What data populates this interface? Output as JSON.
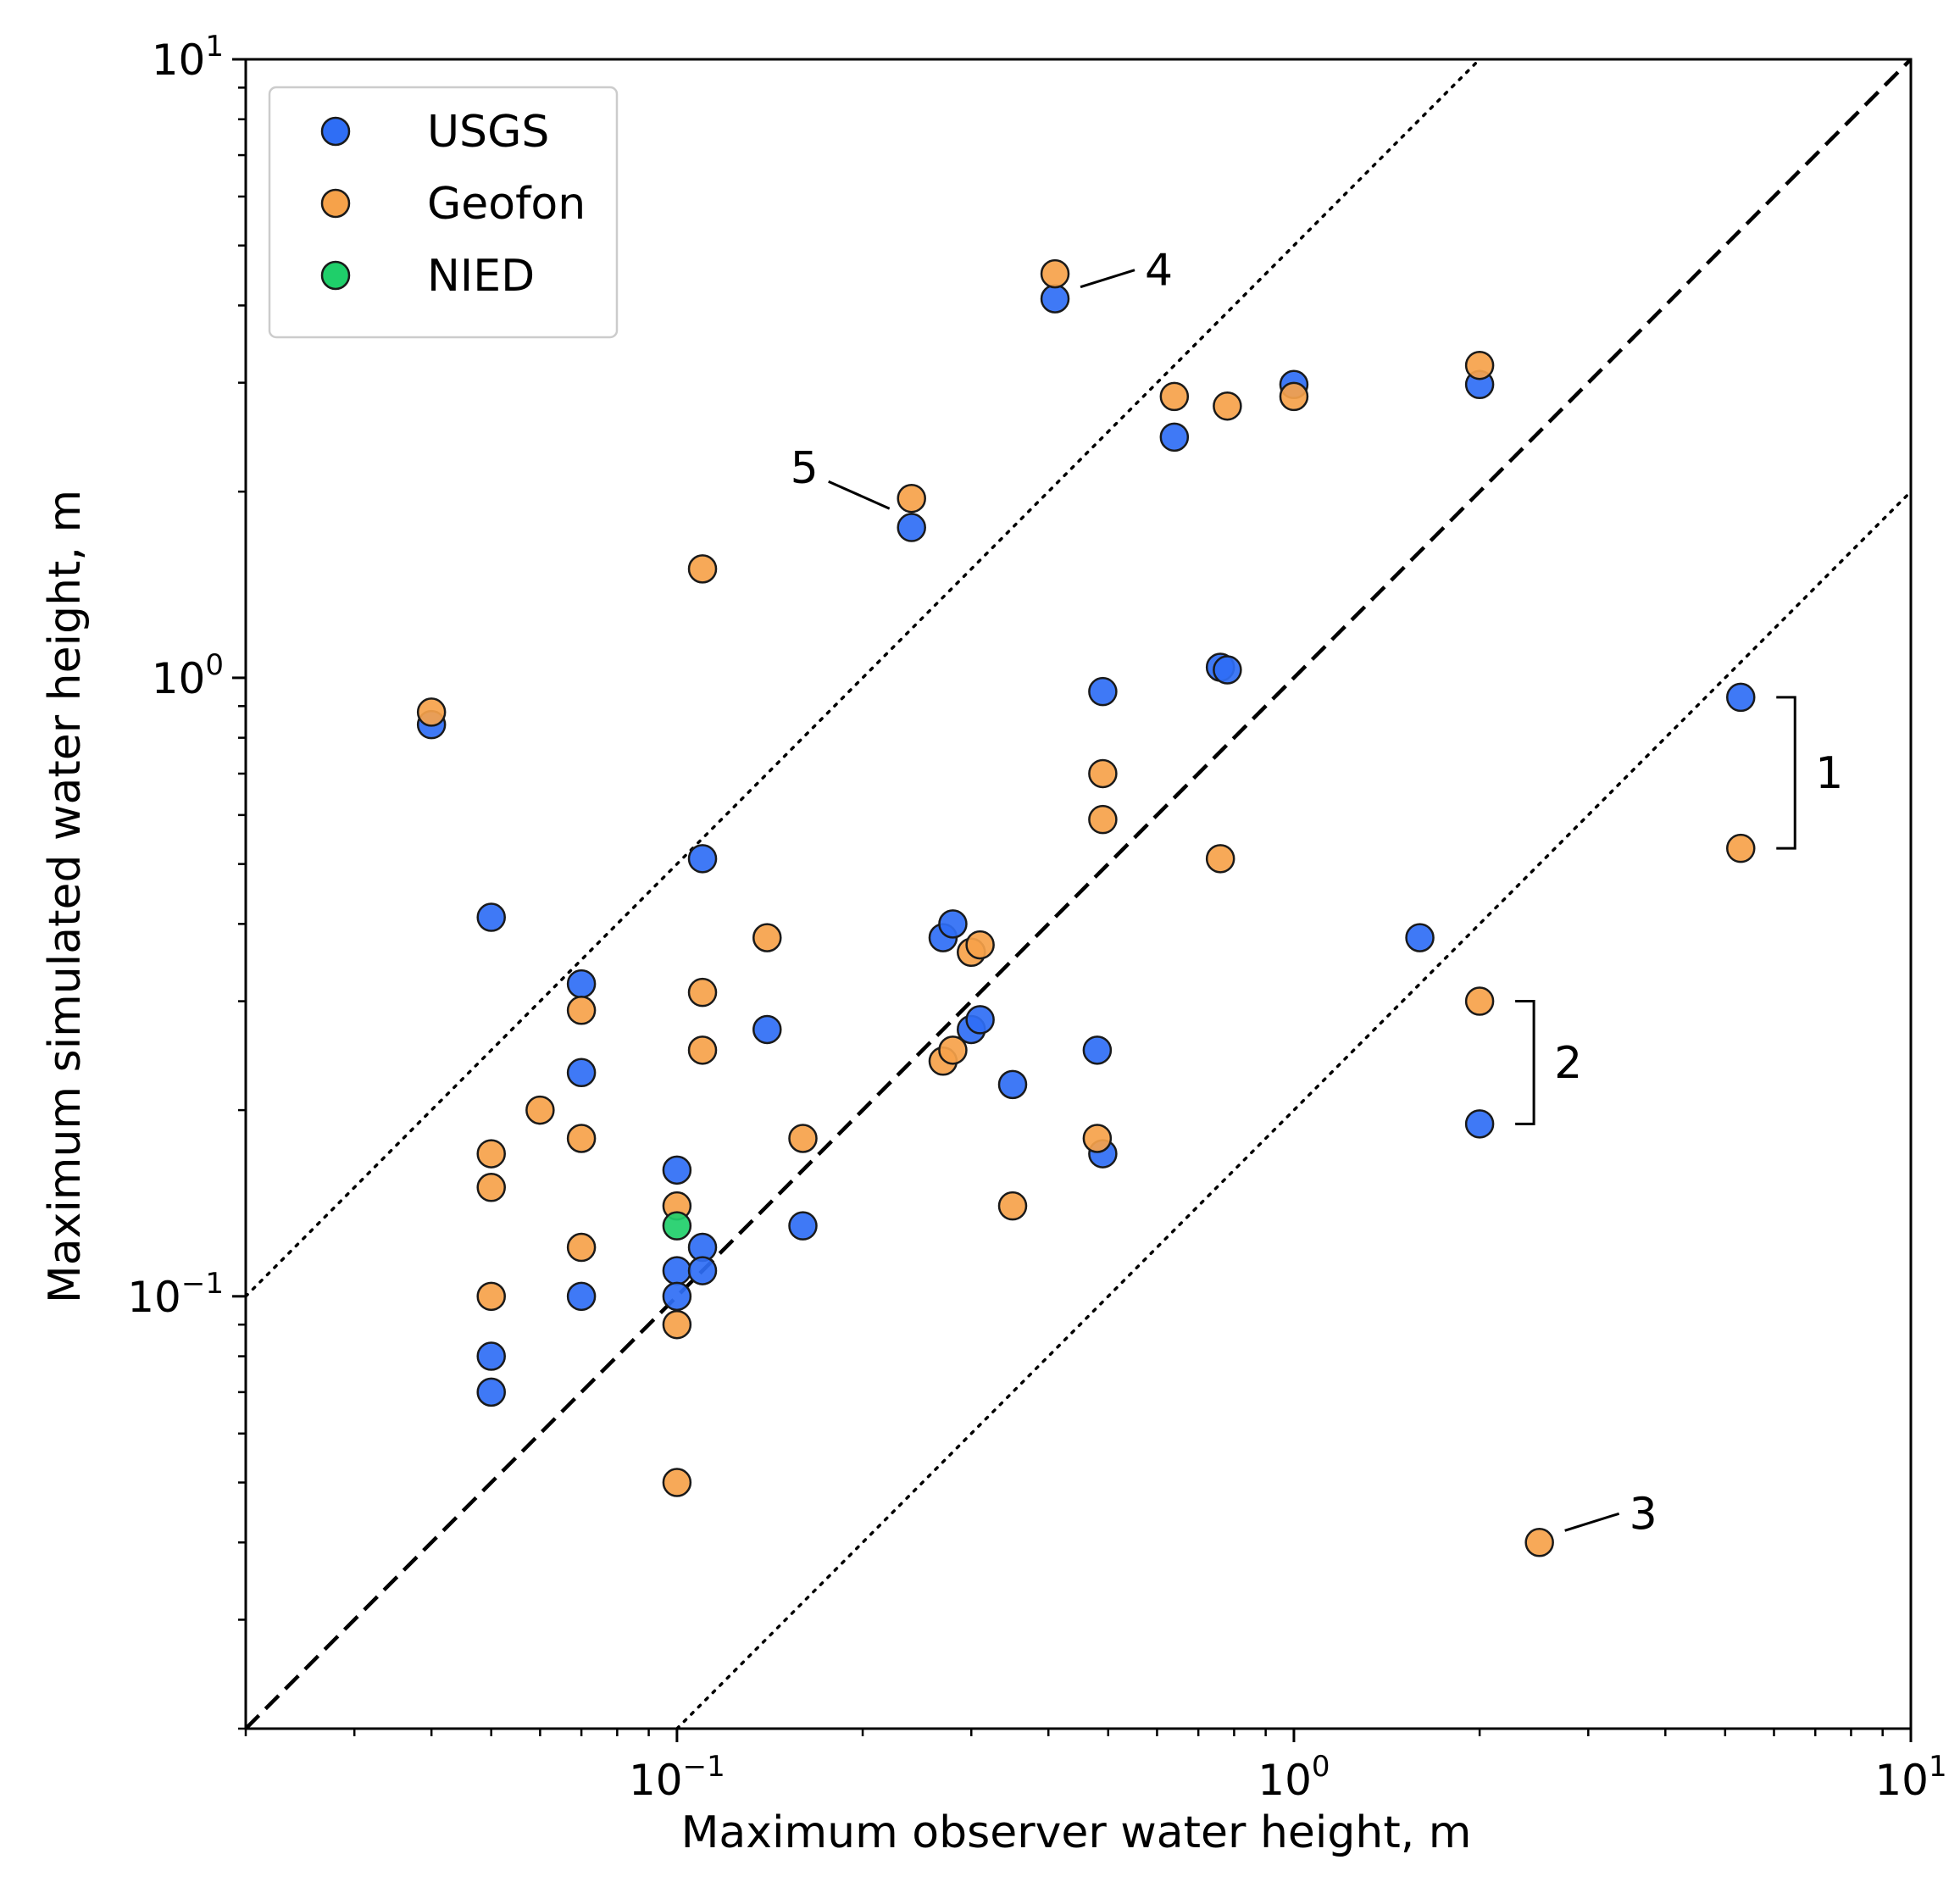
{
  "chart_data": {
    "type": "scatter",
    "title": "",
    "xlabel": "Maximum observer water height, m",
    "ylabel": "Maximum simulated water height, m",
    "xscale": "log",
    "yscale": "log",
    "xlim": [
      0.02,
      10
    ],
    "ylim": [
      0.02,
      10
    ],
    "grid": false,
    "legend_position": "top-left",
    "x_ticks": [
      {
        "value": 0.1,
        "base": "10",
        "exp": "−1"
      },
      {
        "value": 1,
        "base": "10",
        "exp": "0"
      },
      {
        "value": 10,
        "base": "10",
        "exp": "1"
      }
    ],
    "y_ticks": [
      {
        "value": 0.1,
        "base": "10",
        "exp": "−1"
      },
      {
        "value": 1,
        "base": "10",
        "exp": "0"
      },
      {
        "value": 10,
        "base": "10",
        "exp": "1"
      }
    ],
    "reference_lines": [
      {
        "style": "dashed",
        "factor": 1
      },
      {
        "style": "dotted",
        "factor": 5
      },
      {
        "style": "dotted",
        "factor": 0.2
      }
    ],
    "series": [
      {
        "name": "USGS",
        "color": "#2f6ef5",
        "points": [
          [
            0.04,
            0.84
          ],
          [
            0.05,
            0.41
          ],
          [
            0.05,
            0.08
          ],
          [
            0.05,
            0.07
          ],
          [
            0.07,
            0.32
          ],
          [
            0.07,
            0.23
          ],
          [
            0.07,
            0.1
          ],
          [
            0.1,
            0.16
          ],
          [
            0.1,
            0.11
          ],
          [
            0.1,
            0.1
          ],
          [
            0.11,
            0.12
          ],
          [
            0.11,
            0.11
          ],
          [
            0.11,
            0.51
          ],
          [
            0.14,
            0.27
          ],
          [
            0.16,
            0.13
          ],
          [
            0.24,
            1.75
          ],
          [
            0.27,
            0.38
          ],
          [
            0.28,
            0.4
          ],
          [
            0.3,
            0.27
          ],
          [
            0.31,
            0.28
          ],
          [
            0.35,
            0.22
          ],
          [
            0.41,
            4.1
          ],
          [
            0.48,
            0.25
          ],
          [
            0.49,
            0.95
          ],
          [
            0.49,
            0.17
          ],
          [
            0.64,
            2.45
          ],
          [
            0.76,
            1.04
          ],
          [
            0.78,
            1.03
          ],
          [
            1.0,
            2.98
          ],
          [
            1.6,
            0.38
          ],
          [
            2.0,
            2.98
          ],
          [
            2.0,
            0.19
          ],
          [
            5.3,
            0.93
          ]
        ]
      },
      {
        "name": "Geofon",
        "color": "#f6a24a",
        "points": [
          [
            0.04,
            0.88
          ],
          [
            0.05,
            0.17
          ],
          [
            0.05,
            0.15
          ],
          [
            0.05,
            0.1
          ],
          [
            0.06,
            0.2
          ],
          [
            0.07,
            0.29
          ],
          [
            0.07,
            0.18
          ],
          [
            0.07,
            0.12
          ],
          [
            0.1,
            0.14
          ],
          [
            0.1,
            0.09
          ],
          [
            0.1,
            0.05
          ],
          [
            0.11,
            1.5
          ],
          [
            0.11,
            0.31
          ],
          [
            0.11,
            0.25
          ],
          [
            0.14,
            0.38
          ],
          [
            0.16,
            0.18
          ],
          [
            0.24,
            1.95
          ],
          [
            0.27,
            0.24
          ],
          [
            0.28,
            0.25
          ],
          [
            0.3,
            0.36
          ],
          [
            0.31,
            0.37
          ],
          [
            0.35,
            0.14
          ],
          [
            0.41,
            4.5
          ],
          [
            0.48,
            0.18
          ],
          [
            0.49,
            0.7
          ],
          [
            0.49,
            0.59
          ],
          [
            0.64,
            2.85
          ],
          [
            0.76,
            0.51
          ],
          [
            0.78,
            2.75
          ],
          [
            1.0,
            2.85
          ],
          [
            2.0,
            3.2
          ],
          [
            2.0,
            0.3
          ],
          [
            2.5,
            0.04
          ],
          [
            5.3,
            0.53
          ]
        ]
      },
      {
        "name": "NIED",
        "color": "#1fcf6a",
        "points": [
          [
            0.1,
            0.13
          ]
        ]
      }
    ],
    "annotations": [
      {
        "text": "1",
        "kind": "bracket",
        "x": 5.3,
        "y_low": 0.53,
        "y_high": 0.93
      },
      {
        "text": "2",
        "kind": "bracket",
        "x": 2.0,
        "y_low": 0.19,
        "y_high": 0.3
      },
      {
        "text": "3",
        "kind": "pointer",
        "x": 2.5,
        "y": 0.04,
        "dir": "right"
      },
      {
        "text": "4",
        "kind": "pointer",
        "x": 0.41,
        "y": 4.1,
        "dir": "right"
      },
      {
        "text": "5",
        "kind": "pointer",
        "x": 0.24,
        "y": 1.95,
        "dir": "left"
      }
    ]
  }
}
